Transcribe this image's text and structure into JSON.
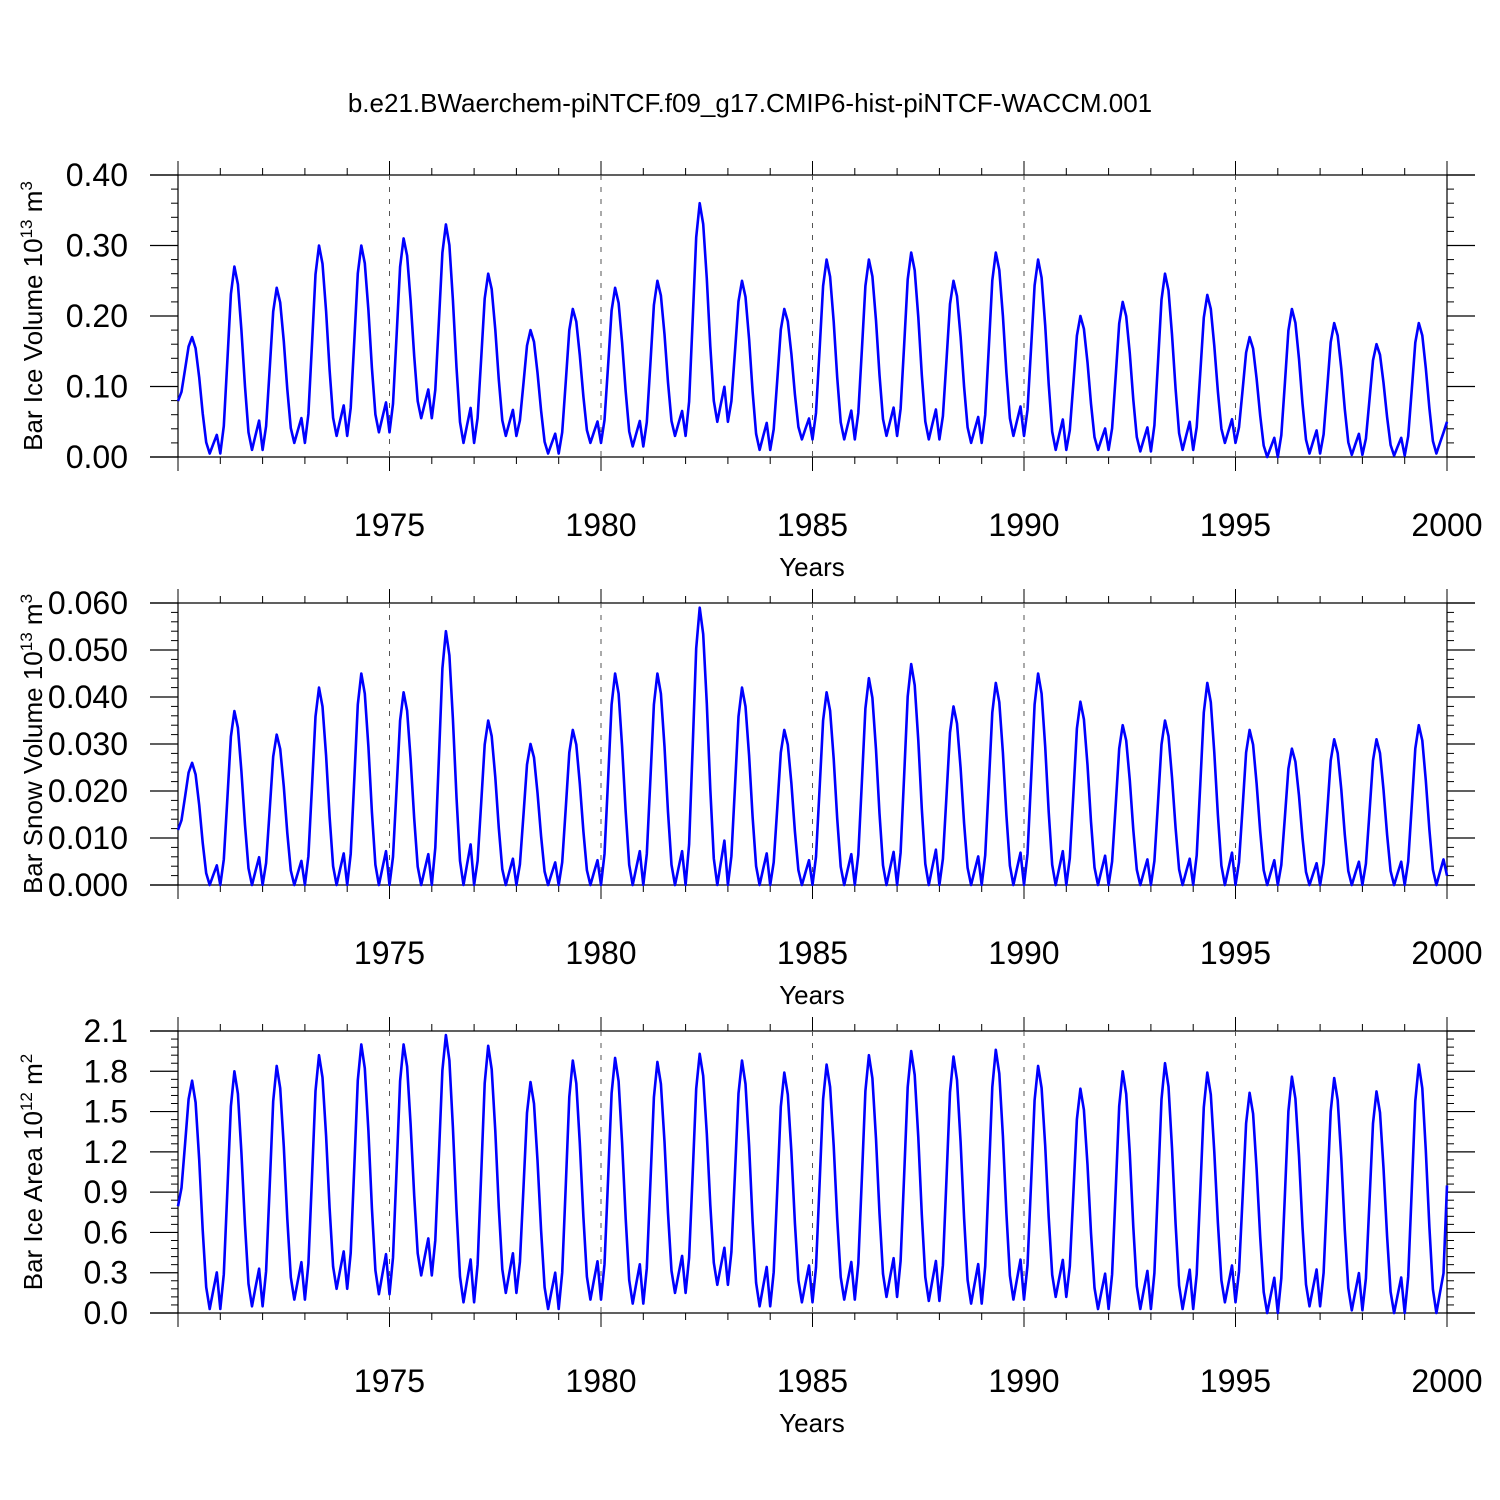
{
  "title": "b.e21.BWaerchem-piNTCF.f09_g17.CMIP6-hist-piNTCF-WACCM.001",
  "chart_data": [
    {
      "type": "line",
      "ylabel": "Bar Ice Volume 10",
      "ylabel_exp": "13",
      "ylabel_unit": " m",
      "ylabel_unit_exp": "3",
      "xlabel": "Years",
      "xlim": [
        1970,
        2000
      ],
      "ylim": [
        0.0,
        0.4
      ],
      "yticks": [
        0.0,
        0.1,
        0.2,
        0.3,
        0.4
      ],
      "ytick_labels": [
        "0.00",
        "0.10",
        "0.20",
        "0.30",
        "0.40"
      ],
      "xticks": [
        1975,
        1980,
        1985,
        1990,
        1995,
        2000
      ],
      "xtick_labels": [
        "1975",
        "1980",
        "1985",
        "1990",
        "1995",
        "2000"
      ],
      "gridlines_x": [
        1975,
        1980,
        1985,
        1990,
        1995
      ],
      "color": "#0000ff",
      "series": [
        {
          "name": "Bar Ice Volume",
          "start_year": 1970,
          "yearly_max": [
            0.17,
            0.27,
            0.24,
            0.3,
            0.3,
            0.31,
            0.33,
            0.26,
            0.18,
            0.21,
            0.24,
            0.25,
            0.36,
            0.25,
            0.21,
            0.28,
            0.28,
            0.29,
            0.25,
            0.29,
            0.28,
            0.2,
            0.22,
            0.26,
            0.23,
            0.17,
            0.21,
            0.19,
            0.16,
            0.19
          ],
          "yearly_min": [
            0.005,
            0.01,
            0.02,
            0.03,
            0.035,
            0.055,
            0.02,
            0.03,
            0.005,
            0.02,
            0.015,
            0.03,
            0.05,
            0.01,
            0.025,
            0.025,
            0.03,
            0.025,
            0.02,
            0.03,
            0.01,
            0.01,
            0.008,
            0.01,
            0.02,
            0.0,
            0.005,
            0.003,
            0.002,
            0.005
          ],
          "end_value": 0.05
        }
      ]
    },
    {
      "type": "line",
      "ylabel": "Bar Snow Volume 10",
      "ylabel_exp": "13",
      "ylabel_unit": " m",
      "ylabel_unit_exp": "3",
      "xlabel": "Years",
      "xlim": [
        1970,
        2000
      ],
      "ylim": [
        0.0,
        0.06
      ],
      "yticks": [
        0.0,
        0.01,
        0.02,
        0.03,
        0.04,
        0.05,
        0.06
      ],
      "ytick_labels": [
        "0.000",
        "0.010",
        "0.020",
        "0.030",
        "0.040",
        "0.050",
        "0.060"
      ],
      "xticks": [
        1975,
        1980,
        1985,
        1990,
        1995,
        2000
      ],
      "xtick_labels": [
        "1975",
        "1980",
        "1985",
        "1990",
        "1995",
        "2000"
      ],
      "gridlines_x": [
        1975,
        1980,
        1985,
        1990,
        1995
      ],
      "color": "#0000ff",
      "series": [
        {
          "name": "Bar Snow Volume",
          "start_year": 1970,
          "yearly_max": [
            0.026,
            0.037,
            0.032,
            0.042,
            0.045,
            0.041,
            0.054,
            0.035,
            0.03,
            0.033,
            0.045,
            0.045,
            0.059,
            0.042,
            0.033,
            0.041,
            0.044,
            0.047,
            0.038,
            0.043,
            0.045,
            0.039,
            0.034,
            0.035,
            0.043,
            0.033,
            0.029,
            0.031,
            0.031,
            0.034
          ],
          "yearly_min": [
            0.0,
            0.0,
            0.0,
            0.0,
            0.0,
            0.0,
            0.0,
            0.0,
            0.0,
            0.0,
            0.0,
            0.0,
            0.0,
            0.0,
            0.0,
            0.0,
            0.0,
            0.0,
            0.0,
            0.0,
            0.0,
            0.0,
            0.0,
            0.0,
            0.0,
            0.0,
            0.0,
            0.0,
            0.0,
            0.0
          ],
          "end_value": 0.002
        }
      ]
    },
    {
      "type": "line",
      "ylabel": "Bar Ice Area 10",
      "ylabel_exp": "12",
      "ylabel_unit": " m",
      "ylabel_unit_exp": "2",
      "xlabel": "Years",
      "xlim": [
        1970,
        2000
      ],
      "ylim": [
        0.0,
        2.1
      ],
      "yticks": [
        0.0,
        0.3,
        0.6,
        0.9,
        1.2,
        1.5,
        1.8,
        2.1
      ],
      "ytick_labels": [
        "0.0",
        "0.3",
        "0.6",
        "0.9",
        "1.2",
        "1.5",
        "1.8",
        "2.1"
      ],
      "xticks": [
        1975,
        1980,
        1985,
        1990,
        1995,
        2000
      ],
      "xtick_labels": [
        "1975",
        "1980",
        "1985",
        "1990",
        "1995",
        "2000"
      ],
      "gridlines_x": [
        1975,
        1980,
        1985,
        1990,
        1995
      ],
      "color": "#0000ff",
      "series": [
        {
          "name": "Bar Ice Area",
          "start_year": 1970,
          "yearly_max": [
            1.73,
            1.8,
            1.84,
            1.92,
            2.0,
            2.0,
            2.07,
            1.99,
            1.72,
            1.88,
            1.9,
            1.87,
            1.93,
            1.88,
            1.79,
            1.85,
            1.92,
            1.95,
            1.91,
            1.96,
            1.84,
            1.67,
            1.8,
            1.86,
            1.79,
            1.64,
            1.76,
            1.75,
            1.65,
            1.85
          ],
          "yearly_min": [
            0.03,
            0.05,
            0.1,
            0.18,
            0.14,
            0.28,
            0.08,
            0.15,
            0.03,
            0.1,
            0.07,
            0.15,
            0.21,
            0.05,
            0.08,
            0.1,
            0.12,
            0.09,
            0.07,
            0.1,
            0.12,
            0.03,
            0.03,
            0.03,
            0.08,
            0.0,
            0.05,
            0.02,
            0.0,
            0.0
          ],
          "end_value": 0.95
        }
      ]
    }
  ]
}
